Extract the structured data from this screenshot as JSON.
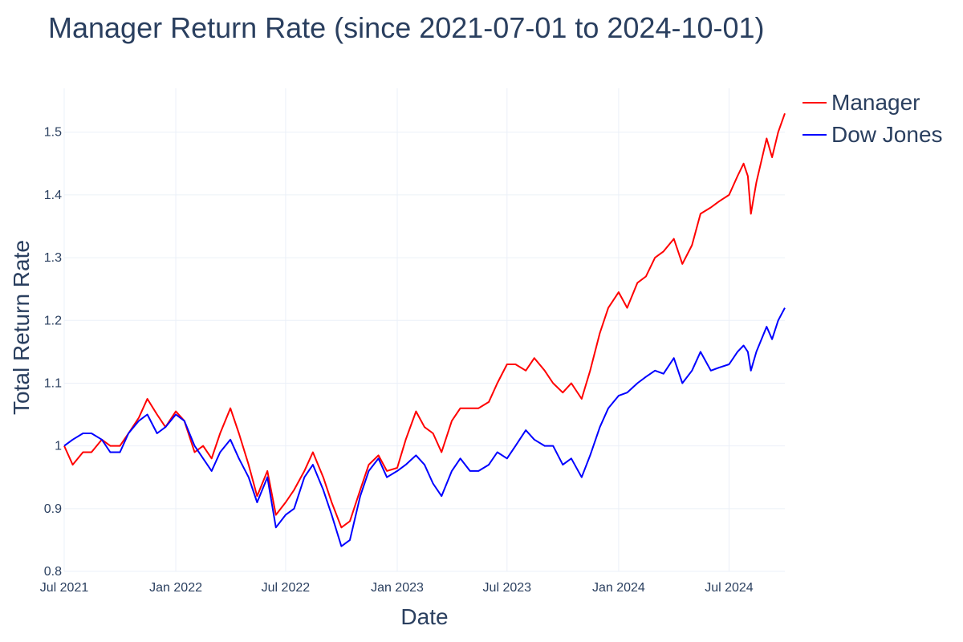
{
  "chart_data": {
    "type": "line",
    "title": "Manager Return Rate (since 2021-07-01 to 2024-10-01)",
    "xlabel": "Date",
    "ylabel": "Total Return Rate",
    "xlim": [
      "2021-07-01",
      "2024-10-01"
    ],
    "ylim": [
      0.8,
      1.57
    ],
    "y_ticks": [
      0.8,
      0.9,
      1.0,
      1.1,
      1.2,
      1.3,
      1.4,
      1.5
    ],
    "y_tick_labels": [
      "0.8",
      "0.9",
      "1",
      "1.1",
      "1.2",
      "1.3",
      "1.4",
      "1.5"
    ],
    "x_ticks": [
      "2021-07-01",
      "2022-01-01",
      "2022-07-01",
      "2023-01-01",
      "2023-07-01",
      "2024-01-01",
      "2024-07-01"
    ],
    "x_tick_labels": [
      "Jul 2021",
      "Jan 2022",
      "Jul 2022",
      "Jan 2023",
      "Jul 2023",
      "Jan 2024",
      "Jul 2024"
    ],
    "grid": true,
    "legend_position": "top-right",
    "series": [
      {
        "name": "Manager",
        "color": "#ff0000",
        "points": [
          [
            "2021-07-01",
            1.0
          ],
          [
            "2021-07-15",
            0.97
          ],
          [
            "2021-08-01",
            0.99
          ],
          [
            "2021-08-15",
            0.99
          ],
          [
            "2021-09-01",
            1.01
          ],
          [
            "2021-09-15",
            1.0
          ],
          [
            "2021-10-01",
            1.0
          ],
          [
            "2021-10-15",
            1.02
          ],
          [
            "2021-11-01",
            1.045
          ],
          [
            "2021-11-15",
            1.075
          ],
          [
            "2021-12-01",
            1.05
          ],
          [
            "2021-12-15",
            1.03
          ],
          [
            "2022-01-01",
            1.055
          ],
          [
            "2022-01-15",
            1.04
          ],
          [
            "2022-02-01",
            0.99
          ],
          [
            "2022-02-15",
            1.0
          ],
          [
            "2022-03-01",
            0.98
          ],
          [
            "2022-03-15",
            1.02
          ],
          [
            "2022-04-01",
            1.06
          ],
          [
            "2022-04-15",
            1.02
          ],
          [
            "2022-05-01",
            0.97
          ],
          [
            "2022-05-15",
            0.92
          ],
          [
            "2022-06-01",
            0.96
          ],
          [
            "2022-06-15",
            0.89
          ],
          [
            "2022-07-01",
            0.91
          ],
          [
            "2022-07-15",
            0.93
          ],
          [
            "2022-08-01",
            0.96
          ],
          [
            "2022-08-15",
            0.99
          ],
          [
            "2022-09-01",
            0.95
          ],
          [
            "2022-09-15",
            0.91
          ],
          [
            "2022-10-01",
            0.87
          ],
          [
            "2022-10-15",
            0.88
          ],
          [
            "2022-11-01",
            0.93
          ],
          [
            "2022-11-15",
            0.97
          ],
          [
            "2022-12-01",
            0.985
          ],
          [
            "2022-12-15",
            0.96
          ],
          [
            "2023-01-01",
            0.965
          ],
          [
            "2023-01-15",
            1.01
          ],
          [
            "2023-02-01",
            1.055
          ],
          [
            "2023-02-15",
            1.03
          ],
          [
            "2023-03-01",
            1.02
          ],
          [
            "2023-03-15",
            0.99
          ],
          [
            "2023-04-01",
            1.04
          ],
          [
            "2023-04-15",
            1.06
          ],
          [
            "2023-05-01",
            1.06
          ],
          [
            "2023-05-15",
            1.06
          ],
          [
            "2023-06-01",
            1.07
          ],
          [
            "2023-06-15",
            1.1
          ],
          [
            "2023-07-01",
            1.13
          ],
          [
            "2023-07-15",
            1.13
          ],
          [
            "2023-08-01",
            1.12
          ],
          [
            "2023-08-15",
            1.14
          ],
          [
            "2023-09-01",
            1.12
          ],
          [
            "2023-09-15",
            1.1
          ],
          [
            "2023-10-01",
            1.085
          ],
          [
            "2023-10-15",
            1.1
          ],
          [
            "2023-11-01",
            1.075
          ],
          [
            "2023-11-15",
            1.12
          ],
          [
            "2023-12-01",
            1.18
          ],
          [
            "2023-12-15",
            1.22
          ],
          [
            "2024-01-01",
            1.245
          ],
          [
            "2024-01-15",
            1.22
          ],
          [
            "2024-02-01",
            1.26
          ],
          [
            "2024-02-15",
            1.27
          ],
          [
            "2024-03-01",
            1.3
          ],
          [
            "2024-03-15",
            1.31
          ],
          [
            "2024-04-01",
            1.33
          ],
          [
            "2024-04-15",
            1.29
          ],
          [
            "2024-05-01",
            1.32
          ],
          [
            "2024-05-15",
            1.37
          ],
          [
            "2024-06-01",
            1.38
          ],
          [
            "2024-06-15",
            1.39
          ],
          [
            "2024-07-01",
            1.4
          ],
          [
            "2024-07-15",
            1.43
          ],
          [
            "2024-07-25",
            1.45
          ],
          [
            "2024-08-01",
            1.43
          ],
          [
            "2024-08-06",
            1.37
          ],
          [
            "2024-08-15",
            1.42
          ],
          [
            "2024-09-01",
            1.49
          ],
          [
            "2024-09-10",
            1.46
          ],
          [
            "2024-09-20",
            1.5
          ],
          [
            "2024-10-01",
            1.53
          ]
        ]
      },
      {
        "name": "Dow Jones",
        "color": "#0000ff",
        "points": [
          [
            "2021-07-01",
            1.0
          ],
          [
            "2021-07-15",
            1.01
          ],
          [
            "2021-08-01",
            1.02
          ],
          [
            "2021-08-15",
            1.02
          ],
          [
            "2021-09-01",
            1.01
          ],
          [
            "2021-09-15",
            0.99
          ],
          [
            "2021-10-01",
            0.99
          ],
          [
            "2021-10-15",
            1.02
          ],
          [
            "2021-11-01",
            1.04
          ],
          [
            "2021-11-15",
            1.05
          ],
          [
            "2021-12-01",
            1.02
          ],
          [
            "2021-12-15",
            1.03
          ],
          [
            "2022-01-01",
            1.05
          ],
          [
            "2022-01-15",
            1.04
          ],
          [
            "2022-02-01",
            1.0
          ],
          [
            "2022-02-15",
            0.98
          ],
          [
            "2022-03-01",
            0.96
          ],
          [
            "2022-03-15",
            0.99
          ],
          [
            "2022-04-01",
            1.01
          ],
          [
            "2022-04-15",
            0.98
          ],
          [
            "2022-05-01",
            0.95
          ],
          [
            "2022-05-15",
            0.91
          ],
          [
            "2022-06-01",
            0.95
          ],
          [
            "2022-06-15",
            0.87
          ],
          [
            "2022-07-01",
            0.89
          ],
          [
            "2022-07-15",
            0.9
          ],
          [
            "2022-08-01",
            0.95
          ],
          [
            "2022-08-15",
            0.97
          ],
          [
            "2022-09-01",
            0.93
          ],
          [
            "2022-09-15",
            0.89
          ],
          [
            "2022-10-01",
            0.84
          ],
          [
            "2022-10-15",
            0.85
          ],
          [
            "2022-11-01",
            0.92
          ],
          [
            "2022-11-15",
            0.96
          ],
          [
            "2022-12-01",
            0.98
          ],
          [
            "2022-12-15",
            0.95
          ],
          [
            "2023-01-01",
            0.96
          ],
          [
            "2023-01-15",
            0.97
          ],
          [
            "2023-02-01",
            0.985
          ],
          [
            "2023-02-15",
            0.97
          ],
          [
            "2023-03-01",
            0.94
          ],
          [
            "2023-03-15",
            0.92
          ],
          [
            "2023-04-01",
            0.96
          ],
          [
            "2023-04-15",
            0.98
          ],
          [
            "2023-05-01",
            0.96
          ],
          [
            "2023-05-15",
            0.96
          ],
          [
            "2023-06-01",
            0.97
          ],
          [
            "2023-06-15",
            0.99
          ],
          [
            "2023-07-01",
            0.98
          ],
          [
            "2023-07-15",
            1.0
          ],
          [
            "2023-08-01",
            1.025
          ],
          [
            "2023-08-15",
            1.01
          ],
          [
            "2023-09-01",
            1.0
          ],
          [
            "2023-09-15",
            1.0
          ],
          [
            "2023-10-01",
            0.97
          ],
          [
            "2023-10-15",
            0.98
          ],
          [
            "2023-11-01",
            0.95
          ],
          [
            "2023-11-15",
            0.985
          ],
          [
            "2023-12-01",
            1.03
          ],
          [
            "2023-12-15",
            1.06
          ],
          [
            "2024-01-01",
            1.08
          ],
          [
            "2024-01-15",
            1.085
          ],
          [
            "2024-02-01",
            1.1
          ],
          [
            "2024-02-15",
            1.11
          ],
          [
            "2024-03-01",
            1.12
          ],
          [
            "2024-03-15",
            1.115
          ],
          [
            "2024-04-01",
            1.14
          ],
          [
            "2024-04-15",
            1.1
          ],
          [
            "2024-05-01",
            1.12
          ],
          [
            "2024-05-15",
            1.15
          ],
          [
            "2024-06-01",
            1.12
          ],
          [
            "2024-06-15",
            1.125
          ],
          [
            "2024-07-01",
            1.13
          ],
          [
            "2024-07-15",
            1.15
          ],
          [
            "2024-07-25",
            1.16
          ],
          [
            "2024-08-01",
            1.15
          ],
          [
            "2024-08-06",
            1.12
          ],
          [
            "2024-08-15",
            1.15
          ],
          [
            "2024-09-01",
            1.19
          ],
          [
            "2024-09-10",
            1.17
          ],
          [
            "2024-09-20",
            1.2
          ],
          [
            "2024-10-01",
            1.22
          ]
        ]
      }
    ]
  }
}
